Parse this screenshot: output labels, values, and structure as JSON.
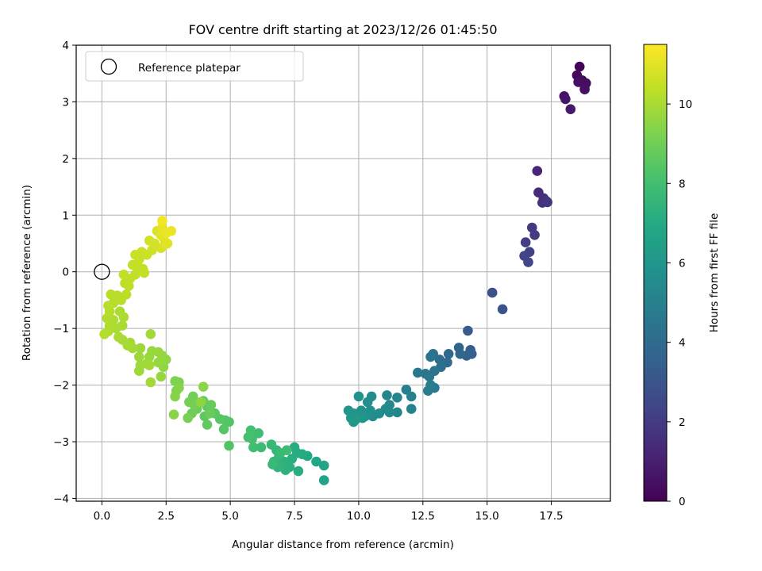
{
  "chart_data": {
    "type": "scatter",
    "title": "FOV centre drift starting at 2023/12/26 01:45:50",
    "xlabel": "Angular distance from reference (arcmin)",
    "ylabel": "Rotation from reference (arcmin)",
    "xlim": [
      -1.0,
      19.8
    ],
    "ylim": [
      -4.05,
      4.0
    ],
    "xticks": [
      0.0,
      2.5,
      5.0,
      7.5,
      10.0,
      12.5,
      15.0,
      17.5
    ],
    "xtick_labels": [
      "0.0",
      "2.5",
      "5.0",
      "7.5",
      "10.0",
      "12.5",
      "15.0",
      "17.5"
    ],
    "yticks": [
      -4,
      -3,
      -2,
      -1,
      0,
      1,
      2,
      3,
      4
    ],
    "ytick_labels": [
      "−4",
      "−3",
      "−2",
      "−1",
      "0",
      "1",
      "2",
      "3",
      "4"
    ],
    "grid": true,
    "legend": {
      "position": "top-left",
      "entries": [
        "Reference platepar"
      ]
    },
    "reference_point": {
      "x": 0.0,
      "y": 0.0
    },
    "colorbar": {
      "label": "Hours from first FF file",
      "colormap": "viridis",
      "range": [
        0,
        11.5
      ],
      "ticks": [
        0,
        2,
        4,
        6,
        8,
        10
      ],
      "tick_labels": [
        "0",
        "2",
        "4",
        "6",
        "8",
        "10"
      ]
    },
    "points": [
      [
        18.6,
        3.62,
        0.1
      ],
      [
        18.5,
        3.47,
        0.2
      ],
      [
        18.7,
        3.38,
        0.3
      ],
      [
        18.8,
        3.28,
        0.35
      ],
      [
        18.85,
        3.33,
        0.4
      ],
      [
        18.55,
        3.35,
        0.45
      ],
      [
        18.8,
        3.22,
        0.5
      ],
      [
        18.0,
        3.1,
        0.6
      ],
      [
        18.05,
        3.05,
        0.7
      ],
      [
        18.25,
        2.87,
        0.8
      ],
      [
        16.95,
        1.78,
        1.2
      ],
      [
        17.0,
        1.4,
        1.4
      ],
      [
        17.2,
        1.3,
        1.5
      ],
      [
        17.3,
        1.25,
        1.6
      ],
      [
        17.15,
        1.22,
        1.7
      ],
      [
        17.35,
        1.23,
        1.75
      ],
      [
        16.75,
        0.78,
        1.9
      ],
      [
        16.85,
        0.65,
        2.0
      ],
      [
        16.5,
        0.52,
        2.1
      ],
      [
        16.65,
        0.35,
        2.2
      ],
      [
        16.45,
        0.28,
        2.3
      ],
      [
        16.6,
        0.17,
        2.4
      ],
      [
        15.2,
        -0.37,
        2.8
      ],
      [
        15.6,
        -0.66,
        3.0
      ],
      [
        14.25,
        -1.04,
        3.3
      ],
      [
        14.35,
        -1.38,
        3.4
      ],
      [
        14.4,
        -1.45,
        3.5
      ],
      [
        14.2,
        -1.48,
        3.6
      ],
      [
        13.9,
        -1.34,
        3.7
      ],
      [
        13.95,
        -1.45,
        3.8
      ],
      [
        13.5,
        -1.45,
        3.9
      ],
      [
        13.45,
        -1.6,
        4.0
      ],
      [
        13.15,
        -1.55,
        4.1
      ],
      [
        13.2,
        -1.68,
        4.2
      ],
      [
        12.9,
        -1.45,
        4.3
      ],
      [
        12.8,
        -1.5,
        4.35
      ],
      [
        12.95,
        -1.75,
        4.4
      ],
      [
        12.6,
        -1.8,
        4.5
      ],
      [
        12.75,
        -1.85,
        4.55
      ],
      [
        12.3,
        -1.78,
        4.6
      ],
      [
        12.95,
        -2.05,
        4.7
      ],
      [
        12.7,
        -2.1,
        4.8
      ],
      [
        12.8,
        -2.0,
        4.85
      ],
      [
        11.85,
        -2.08,
        4.9
      ],
      [
        12.05,
        -2.2,
        5.0
      ],
      [
        12.05,
        -2.42,
        5.1
      ],
      [
        11.5,
        -2.22,
        5.15
      ],
      [
        11.5,
        -2.48,
        5.2
      ],
      [
        11.1,
        -2.18,
        5.3
      ],
      [
        11.2,
        -2.35,
        5.35
      ],
      [
        11.05,
        -2.42,
        5.4
      ],
      [
        11.2,
        -2.48,
        5.45
      ],
      [
        10.8,
        -2.5,
        5.5
      ],
      [
        10.55,
        -2.55,
        5.55
      ],
      [
        10.5,
        -2.2,
        5.6
      ],
      [
        10.35,
        -2.3,
        5.65
      ],
      [
        10.45,
        -2.45,
        5.7
      ],
      [
        10.25,
        -2.55,
        5.75
      ],
      [
        10.0,
        -2.2,
        5.8
      ],
      [
        10.1,
        -2.45,
        5.85
      ],
      [
        10.15,
        -2.58,
        5.9
      ],
      [
        9.8,
        -2.5,
        5.95
      ],
      [
        9.6,
        -2.45,
        6.0
      ],
      [
        9.8,
        -2.65,
        6.05
      ],
      [
        9.7,
        -2.58,
        6.1
      ],
      [
        9.9,
        -2.6,
        6.15
      ],
      [
        8.65,
        -3.68,
        6.6
      ],
      [
        8.65,
        -3.42,
        6.7
      ],
      [
        8.35,
        -3.35,
        6.8
      ],
      [
        8.0,
        -3.25,
        6.9
      ],
      [
        7.8,
        -3.22,
        7.0
      ],
      [
        7.5,
        -3.1,
        7.05
      ],
      [
        7.6,
        -3.2,
        7.1
      ],
      [
        7.65,
        -3.52,
        7.15
      ],
      [
        7.4,
        -3.3,
        7.2
      ],
      [
        7.3,
        -3.45,
        7.25
      ],
      [
        7.1,
        -3.35,
        7.3
      ],
      [
        7.15,
        -3.5,
        7.35
      ],
      [
        7.0,
        -3.4,
        7.4
      ],
      [
        6.85,
        -3.45,
        7.45
      ],
      [
        6.9,
        -3.25,
        7.5
      ],
      [
        6.8,
        -3.15,
        7.55
      ],
      [
        6.7,
        -3.35,
        7.6
      ],
      [
        6.6,
        -3.05,
        7.65
      ],
      [
        6.65,
        -3.4,
        7.7
      ],
      [
        6.95,
        -3.2,
        7.75
      ],
      [
        7.2,
        -3.15,
        7.8
      ],
      [
        6.2,
        -3.1,
        7.85
      ],
      [
        6.1,
        -2.85,
        7.9
      ],
      [
        5.9,
        -3.1,
        7.95
      ],
      [
        5.85,
        -2.95,
        8.0
      ],
      [
        5.8,
        -2.8,
        8.05
      ],
      [
        5.7,
        -2.92,
        8.1
      ],
      [
        4.95,
        -3.07,
        8.3
      ],
      [
        4.95,
        -2.65,
        8.35
      ],
      [
        4.8,
        -2.62,
        8.4
      ],
      [
        4.75,
        -2.78,
        8.45
      ],
      [
        4.6,
        -2.6,
        8.5
      ],
      [
        4.4,
        -2.5,
        8.55
      ],
      [
        4.1,
        -2.38,
        8.6
      ],
      [
        4.0,
        -2.55,
        8.65
      ],
      [
        4.1,
        -2.7,
        8.7
      ],
      [
        3.95,
        -2.28,
        8.75
      ],
      [
        4.25,
        -2.35,
        8.8
      ],
      [
        4.2,
        -2.5,
        8.85
      ],
      [
        3.7,
        -2.42,
        8.9
      ],
      [
        3.5,
        -2.5,
        8.95
      ],
      [
        3.55,
        -2.2,
        9.0
      ],
      [
        3.4,
        -2.3,
        9.05
      ],
      [
        3.6,
        -2.35,
        9.1
      ],
      [
        3.35,
        -2.58,
        9.15
      ],
      [
        3.0,
        -1.95,
        9.2
      ],
      [
        2.85,
        -1.93,
        9.25
      ],
      [
        2.9,
        -2.1,
        9.3
      ],
      [
        3.0,
        -2.05,
        9.35
      ],
      [
        2.85,
        -2.2,
        9.4
      ],
      [
        2.8,
        -2.52,
        9.45
      ],
      [
        3.95,
        -2.03,
        9.5
      ],
      [
        3.85,
        -2.3,
        9.55
      ],
      [
        2.4,
        -1.68,
        9.6
      ],
      [
        2.5,
        -1.55,
        9.62
      ],
      [
        2.35,
        -1.48,
        9.64
      ],
      [
        2.2,
        -1.6,
        9.66
      ],
      [
        2.3,
        -1.85,
        9.68
      ],
      [
        2.2,
        -1.42,
        9.7
      ],
      [
        1.95,
        -1.4,
        9.72
      ],
      [
        1.85,
        -1.5,
        9.74
      ],
      [
        1.75,
        -1.62,
        9.76
      ],
      [
        1.5,
        -1.35,
        9.78
      ],
      [
        1.45,
        -1.5,
        9.8
      ],
      [
        1.5,
        -1.65,
        9.82
      ],
      [
        1.45,
        -1.75,
        9.84
      ],
      [
        1.85,
        -1.65,
        9.86
      ],
      [
        1.9,
        -1.95,
        9.88
      ],
      [
        1.9,
        -1.1,
        9.9
      ],
      [
        1.2,
        -1.35,
        9.92
      ],
      [
        1.1,
        -1.25,
        9.94
      ],
      [
        1.0,
        -1.3,
        9.96
      ],
      [
        0.8,
        -1.2,
        9.98
      ],
      [
        0.65,
        -1.15,
        10.0
      ],
      [
        0.55,
        -1.0,
        10.02
      ],
      [
        0.8,
        -0.95,
        10.04
      ],
      [
        0.85,
        -0.8,
        10.06
      ],
      [
        0.7,
        -0.7,
        10.08
      ],
      [
        0.45,
        -0.85,
        10.1
      ],
      [
        0.3,
        -0.95,
        10.12
      ],
      [
        0.2,
        -0.82,
        10.14
      ],
      [
        0.25,
        -1.05,
        10.16
      ],
      [
        0.1,
        -1.1,
        10.18
      ],
      [
        0.3,
        -0.7,
        10.2
      ],
      [
        0.45,
        -0.55,
        10.22
      ],
      [
        0.25,
        -0.6,
        10.24
      ],
      [
        0.35,
        -0.4,
        10.26
      ],
      [
        0.6,
        -0.42,
        10.28
      ],
      [
        0.75,
        -0.5,
        10.3
      ],
      [
        0.95,
        -0.4,
        10.32
      ],
      [
        0.9,
        -0.2,
        10.34
      ],
      [
        1.05,
        -0.25,
        10.36
      ],
      [
        1.1,
        -0.12,
        10.38
      ],
      [
        0.85,
        -0.05,
        10.4
      ],
      [
        1.3,
        -0.05,
        10.42
      ],
      [
        1.2,
        0.12,
        10.44
      ],
      [
        1.4,
        0.1,
        10.46
      ],
      [
        1.6,
        0.05,
        10.48
      ],
      [
        1.65,
        -0.02,
        10.5
      ],
      [
        1.45,
        0.22,
        10.52
      ],
      [
        1.3,
        0.3,
        10.54
      ],
      [
        1.55,
        0.35,
        10.56
      ],
      [
        1.75,
        0.3,
        10.6
      ],
      [
        1.95,
        0.38,
        10.65
      ],
      [
        1.85,
        0.55,
        10.7
      ],
      [
        2.05,
        0.5,
        10.75
      ],
      [
        2.3,
        0.42,
        10.8
      ],
      [
        2.15,
        0.72,
        10.85
      ],
      [
        2.45,
        0.48,
        10.9
      ],
      [
        2.4,
        0.6,
        10.95
      ],
      [
        2.55,
        0.5,
        11.0
      ],
      [
        2.3,
        0.65,
        11.05
      ],
      [
        2.35,
        0.78,
        11.1
      ],
      [
        2.5,
        0.68,
        11.15
      ],
      [
        2.7,
        0.72,
        11.2
      ],
      [
        2.35,
        0.9,
        11.3
      ]
    ]
  }
}
